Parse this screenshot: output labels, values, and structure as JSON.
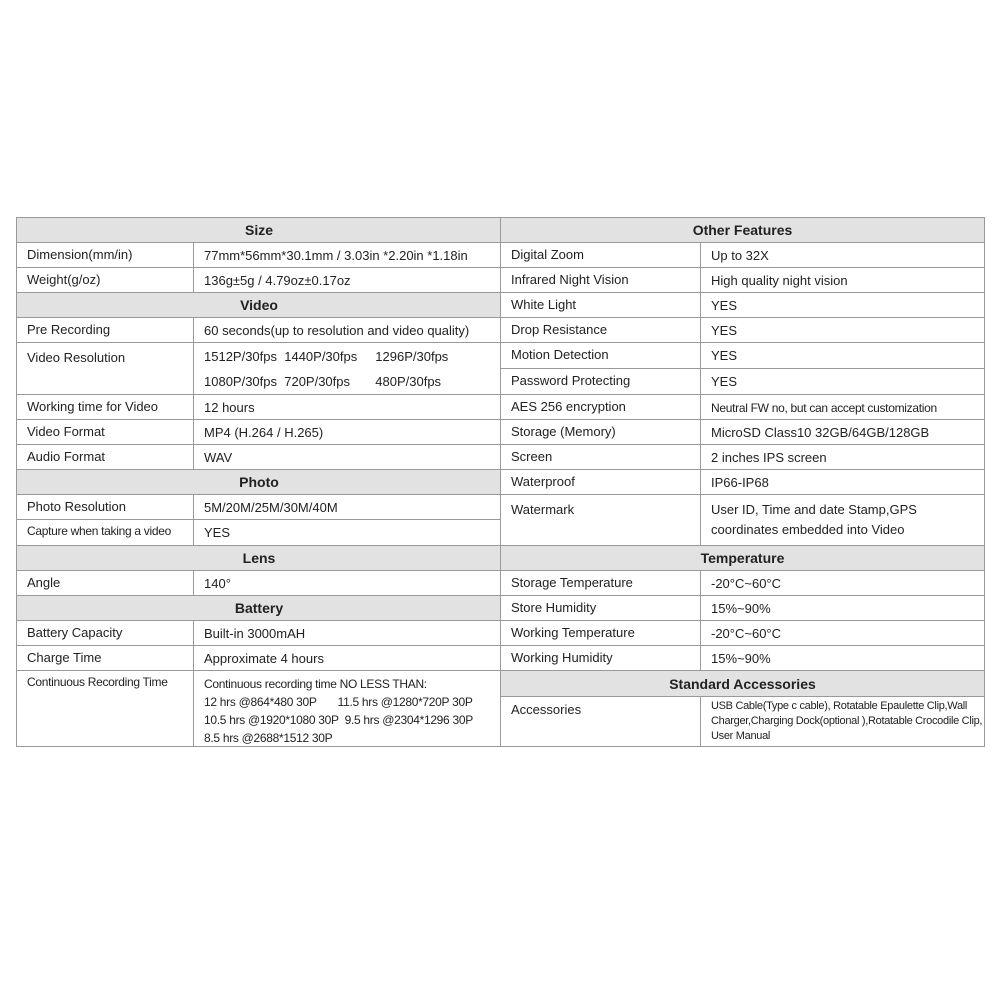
{
  "left": {
    "size": "Size",
    "dimension": {
      "label": "Dimension(mm/in)",
      "value": "77mm*56mm*30.1mm / 3.03in *2.20in *1.18in"
    },
    "weight": {
      "label": "Weight(g/oz)",
      "value": "136g±5g / 4.79oz±0.17oz"
    },
    "video": "Video",
    "pre_recording": {
      "label": "Pre Recording",
      "value": "60 seconds(up to resolution and video quality)"
    },
    "video_resolution": {
      "label": "Video Resolution",
      "lines": [
        "1512P/30fps  1440P/30fps     1296P/30fps",
        "1080P/30fps  720P/30fps       480P/30fps"
      ]
    },
    "working_time": {
      "label": "Working time for Video",
      "value": "12 hours"
    },
    "video_format": {
      "label": "Video Format",
      "value": "MP4 (H.264 / H.265)"
    },
    "audio_format": {
      "label": "Audio Format",
      "value": "WAV"
    },
    "photo": "Photo",
    "photo_resolution": {
      "label": "Photo Resolution",
      "value": "5M/20M/25M/30M/40M"
    },
    "capture": {
      "label": "Capture when taking a video",
      "value": "YES"
    },
    "lens": "Lens",
    "angle": {
      "label": "Angle",
      "value": "140°"
    },
    "battery": "Battery",
    "capacity": {
      "label": "Battery Capacity",
      "value": "Built-in 3000mAH"
    },
    "charge": {
      "label": "Charge Time",
      "value": "Approximate 4  hours"
    },
    "continuous": {
      "label": "Continuous Recording Time",
      "lines": [
        "Continuous recording time NO LESS THAN:",
        "12 hrs @864*480 30P       11.5 hrs @1280*720P 30P",
        "10.5 hrs @1920*1080 30P  9.5 hrs @2304*1296 30P",
        "8.5 hrs @2688*1512 30P"
      ]
    }
  },
  "right": {
    "other": "Other Features",
    "zoom": {
      "label": "Digital Zoom",
      "value": "Up to 32X"
    },
    "ir": {
      "label": "Infrared Night Vision",
      "value": "High quality night vision"
    },
    "white": {
      "label": "White Light",
      "value": "YES"
    },
    "drop": {
      "label": "Drop Resistance",
      "value": "YES"
    },
    "motion": {
      "label": "Motion Detection",
      "value": "YES"
    },
    "password": {
      "label": "Password Protecting",
      "value": "YES"
    },
    "aes": {
      "label": "AES 256 encryption",
      "value": "Neutral FW no, but can accept customization"
    },
    "storage": {
      "label": "Storage (Memory)",
      "value": "MicroSD Class10  32GB/64GB/128GB"
    },
    "screen": {
      "label": "Screen",
      "value": "2 inches IPS screen"
    },
    "waterproof": {
      "label": "Waterproof",
      "value": "IP66-IP68"
    },
    "watermark": {
      "label": "Watermark",
      "lines": [
        "User ID, Time and date Stamp,GPS",
        "coordinates embedded into Video"
      ]
    },
    "temperature": "Temperature",
    "storage_temp": {
      "label": "Storage Temperature",
      "value": "-20°C~60°C"
    },
    "store_humidity": {
      "label": "Store Humidity",
      "value": "15%~90%"
    },
    "working_temp": {
      "label": "Working Temperature",
      "value": "-20°C~60°C"
    },
    "working_humidity": {
      "label": "Working Humidity",
      "value": "15%~90%"
    },
    "accessories_header": "Standard Accessories",
    "accessories": {
      "label": "Accessories",
      "lines": [
        "USB Cable(Type c cable), Rotatable Epaulette Clip,Wall",
        "Charger,Charging Dock(optional ),Rotatable Crocodile Clip,",
        "User Manual"
      ]
    }
  }
}
